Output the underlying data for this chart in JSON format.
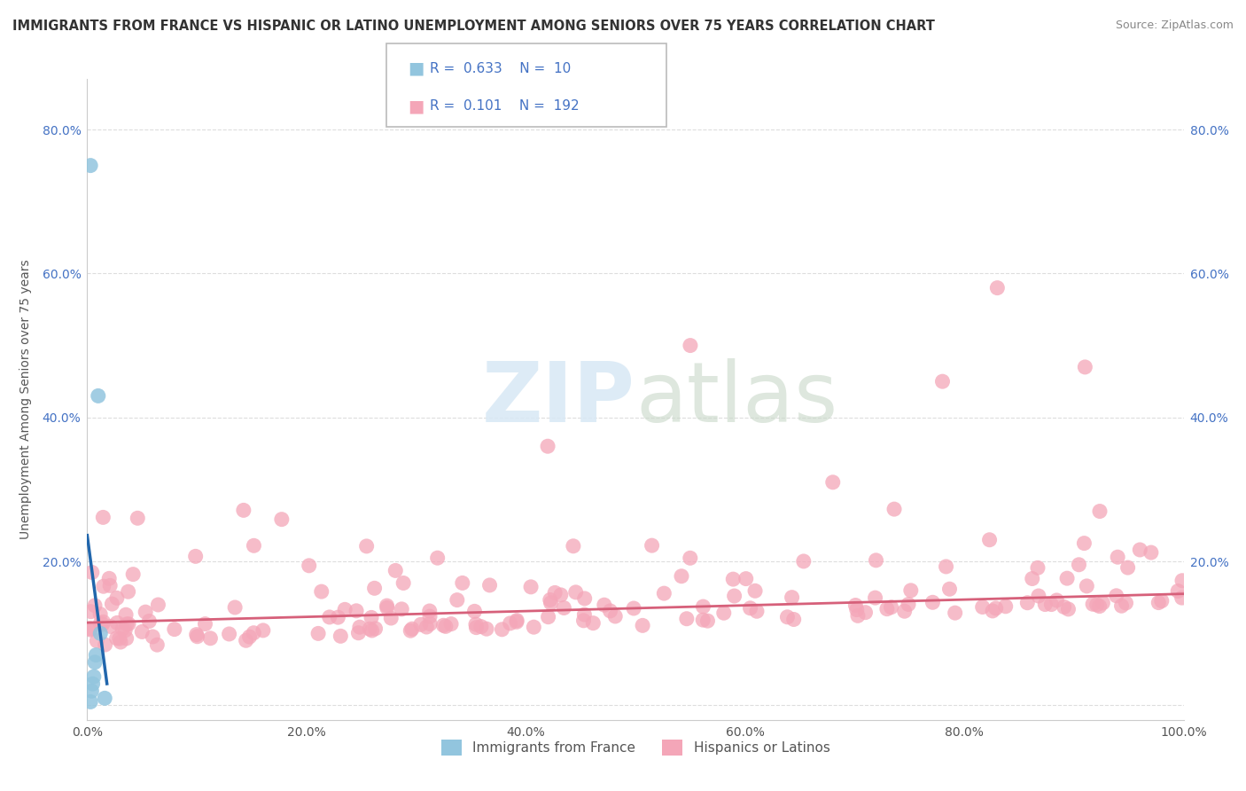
{
  "title": "IMMIGRANTS FROM FRANCE VS HISPANIC OR LATINO UNEMPLOYMENT AMONG SENIORS OVER 75 YEARS CORRELATION CHART",
  "source": "Source: ZipAtlas.com",
  "ylabel": "Unemployment Among Seniors over 75 years",
  "xlim": [
    0.0,
    1.0
  ],
  "ylim": [
    -0.02,
    0.87
  ],
  "xticks": [
    0.0,
    0.2,
    0.4,
    0.6,
    0.8,
    1.0
  ],
  "yticks": [
    0.0,
    0.2,
    0.4,
    0.6,
    0.8
  ],
  "xtick_labels": [
    "0.0%",
    "20.0%",
    "40.0%",
    "60.0%",
    "80.0%",
    "100.0%"
  ],
  "ytick_labels": [
    "",
    "20.0%",
    "40.0%",
    "60.0%",
    "80.0%"
  ],
  "blue_R": 0.633,
  "blue_N": 10,
  "pink_R": 0.101,
  "pink_N": 192,
  "blue_color": "#92c5de",
  "pink_color": "#f4a6b8",
  "blue_line_color": "#2166ac",
  "pink_line_color": "#d6607a",
  "tick_color": "#4472C4",
  "watermark_color": "#d8e8f5",
  "background_color": "#ffffff",
  "grid_color": "#dddddd"
}
